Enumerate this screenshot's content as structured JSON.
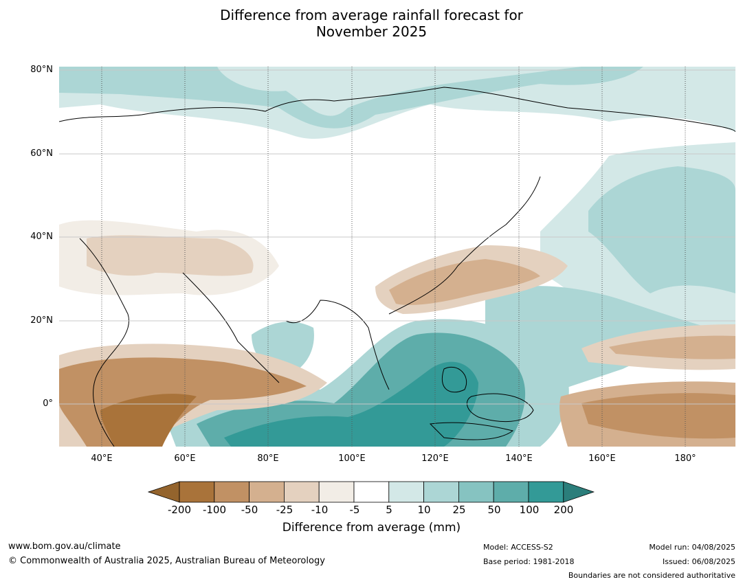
{
  "title": {
    "line1": "Difference from average rainfall forecast for",
    "line2": "November 2025"
  },
  "map": {
    "lat_labels": [
      "80°N",
      "60°N",
      "40°N",
      "20°N",
      "0°"
    ],
    "lon_labels": [
      "40°E",
      "60°E",
      "80°E",
      "100°E",
      "120°E",
      "140°E",
      "160°E",
      "180°"
    ],
    "extent": {
      "lon": [
        30,
        192
      ],
      "lat": [
        -10,
        81
      ]
    }
  },
  "colorbar": {
    "label": "Difference from average (mm)",
    "ticks": [
      "-200",
      "-100",
      "-50",
      "-25",
      "-10",
      "-5",
      "5",
      "10",
      "25",
      "50",
      "100",
      "200"
    ],
    "colors": [
      "#a9733a",
      "#c19164",
      "#d4b08f",
      "#e4d1bf",
      "#f2ede6",
      "#ffffff",
      "#d3e8e7",
      "#acd6d5",
      "#86c3c1",
      "#5eadaa",
      "#339a97"
    ],
    "under_color": "#94642d",
    "over_color": "#2b7e7b"
  },
  "footer": {
    "website": "www.bom.gov.au/climate",
    "copyright": "© Commonwealth of Australia 2025, Australian Bureau of Meteorology",
    "model": "Model: ACCESS-S2",
    "base_period": "Base period: 1981-2018",
    "model_run": "Model run: 04/08/2025",
    "issued": "Issued: 06/08/2025",
    "boundaries": "Boundaries are not considered authoritative"
  }
}
